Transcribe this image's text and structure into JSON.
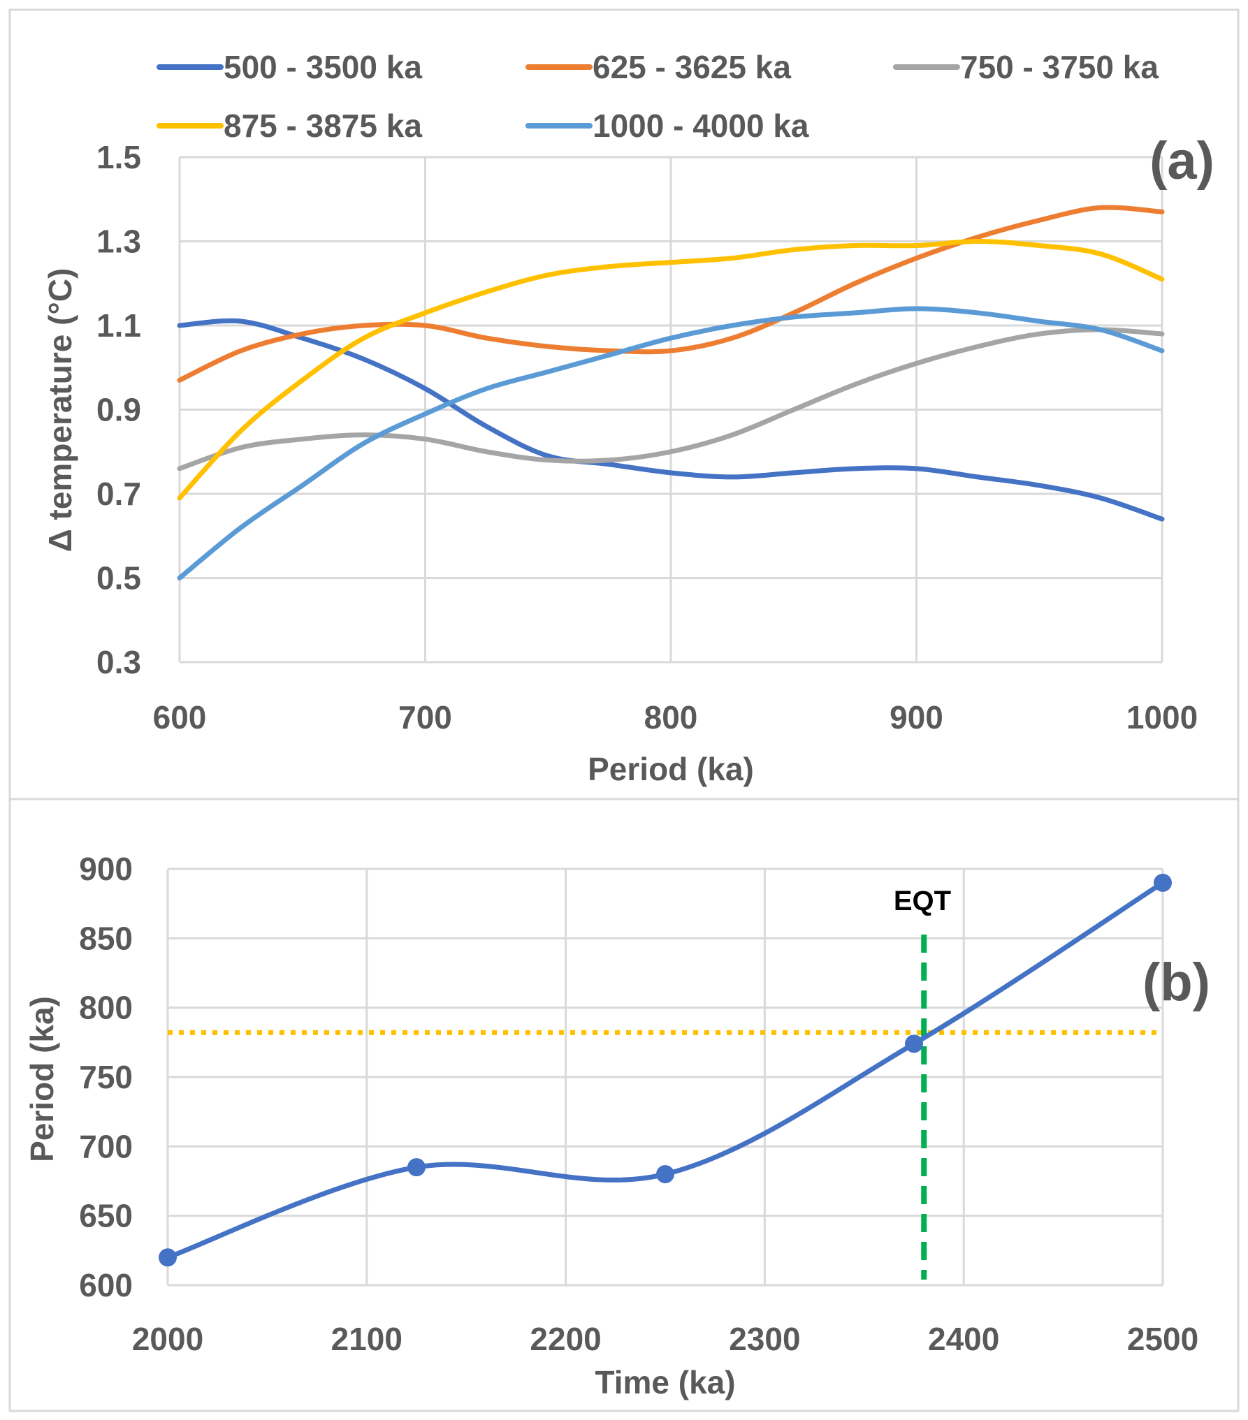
{
  "chart_data": [
    {
      "type": "line",
      "panel_label": "(a)",
      "xlabel": "Period (ka)",
      "ylabel": "Δ temperature (°C)",
      "xlim": [
        600,
        1000
      ],
      "ylim": [
        0.3,
        1.5
      ],
      "xticks": [
        600,
        700,
        800,
        900,
        1000
      ],
      "yticks": [
        0.3,
        0.5,
        0.7,
        0.9,
        1.1,
        1.3,
        1.5
      ],
      "ytick_labels": [
        "0.3",
        "0.5",
        "0.7",
        "0.9",
        "1.1",
        "1.3",
        "1.5"
      ],
      "grid": true,
      "legend_position": "top",
      "x": [
        600,
        625,
        650,
        675,
        700,
        725,
        750,
        775,
        800,
        825,
        850,
        875,
        900,
        925,
        950,
        975,
        1000
      ],
      "series": [
        {
          "name": "500 - 3500 ka",
          "color": "#4472C4",
          "values": [
            1.1,
            1.11,
            1.07,
            1.02,
            0.95,
            0.86,
            0.79,
            0.77,
            0.75,
            0.74,
            0.75,
            0.76,
            0.76,
            0.74,
            0.72,
            0.69,
            0.64
          ]
        },
        {
          "name": "625 - 3625 ka",
          "color": "#ED7D31",
          "values": [
            0.97,
            1.04,
            1.08,
            1.1,
            1.1,
            1.07,
            1.05,
            1.04,
            1.04,
            1.07,
            1.13,
            1.2,
            1.26,
            1.31,
            1.35,
            1.38,
            1.37
          ]
        },
        {
          "name": "750 - 3750 ka",
          "color": "#A5A5A5",
          "values": [
            0.76,
            0.81,
            0.83,
            0.84,
            0.83,
            0.8,
            0.78,
            0.78,
            0.8,
            0.84,
            0.9,
            0.96,
            1.01,
            1.05,
            1.08,
            1.09,
            1.08
          ]
        },
        {
          "name": "875 - 3875 ka",
          "color": "#FFC000",
          "values": [
            0.69,
            0.85,
            0.97,
            1.07,
            1.13,
            1.18,
            1.22,
            1.24,
            1.25,
            1.26,
            1.28,
            1.29,
            1.29,
            1.3,
            1.29,
            1.27,
            1.21
          ]
        },
        {
          "name": "1000 - 4000 ka",
          "color": "#5B9BD5",
          "values": [
            0.5,
            0.62,
            0.72,
            0.82,
            0.89,
            0.95,
            0.99,
            1.03,
            1.07,
            1.1,
            1.12,
            1.13,
            1.14,
            1.13,
            1.11,
            1.09,
            1.04
          ]
        }
      ]
    },
    {
      "type": "line",
      "panel_label": "(b)",
      "xlabel": "Time (ka)",
      "ylabel": "Period (ka)",
      "xlim": [
        2000,
        2500
      ],
      "ylim": [
        600,
        900
      ],
      "xticks": [
        2000,
        2100,
        2200,
        2300,
        2400,
        2500
      ],
      "yticks": [
        600,
        650,
        700,
        750,
        800,
        850,
        900
      ],
      "grid": true,
      "series": [
        {
          "color": "#4472C4",
          "markers": true,
          "x": [
            2000,
            2125,
            2250,
            2375,
            2500
          ],
          "values": [
            620,
            685,
            680,
            774,
            890
          ]
        }
      ],
      "reference_lines": {
        "horizontal": {
          "y": 782,
          "color": "#FFC000",
          "style": "dotted"
        },
        "vertical": {
          "x": 2380,
          "color": "#00B050",
          "style": "dashed",
          "label": "EQT"
        }
      }
    }
  ]
}
